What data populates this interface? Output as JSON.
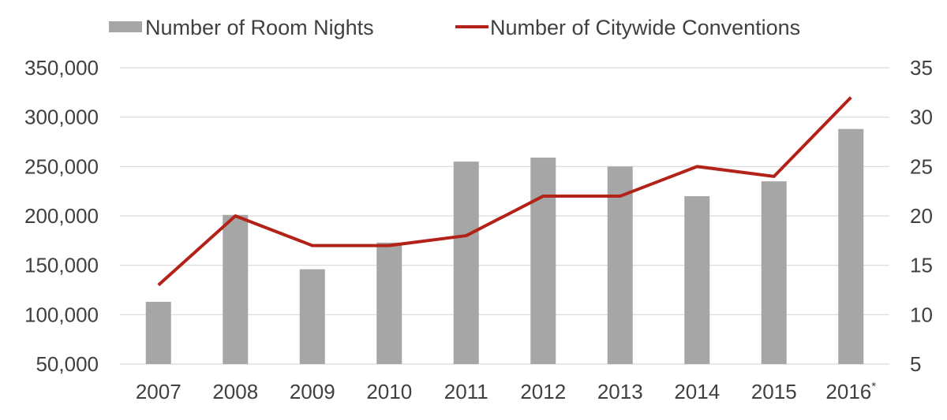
{
  "chart_data": {
    "type": "bar",
    "categories": [
      "2007",
      "2008",
      "2009",
      "2010",
      "2011",
      "2012",
      "2013",
      "2014",
      "2015",
      "2016"
    ],
    "category_superscripts": [
      "",
      "",
      "",
      "",
      "",
      "",
      "",
      "",
      "",
      "*"
    ],
    "series": [
      {
        "name": "Number of Room Nights",
        "type": "bar",
        "axis": "left",
        "color": "#a6a6a6",
        "values": [
          113000,
          201000,
          146000,
          173000,
          255000,
          259000,
          250000,
          220000,
          235000,
          288000
        ]
      },
      {
        "name": "Number of Citywide Conventions",
        "type": "line",
        "axis": "right",
        "color": "#b22218",
        "values": [
          13,
          20,
          17,
          17,
          18,
          22,
          22,
          25,
          24,
          32
        ]
      }
    ],
    "y_left": {
      "min": 50000,
      "max": 350000,
      "ticks": [
        50000,
        100000,
        150000,
        200000,
        250000,
        300000,
        350000
      ],
      "tick_labels": [
        "50,000",
        "100,000",
        "150,000",
        "200,000",
        "250,000",
        "300,000",
        "350,000"
      ]
    },
    "y_right": {
      "min": 5,
      "max": 35,
      "ticks": [
        5,
        10,
        15,
        20,
        25,
        30,
        35
      ],
      "tick_labels": [
        "5",
        "10",
        "15",
        "20",
        "25",
        "30",
        "35"
      ]
    },
    "grid": true,
    "legend": "top"
  }
}
